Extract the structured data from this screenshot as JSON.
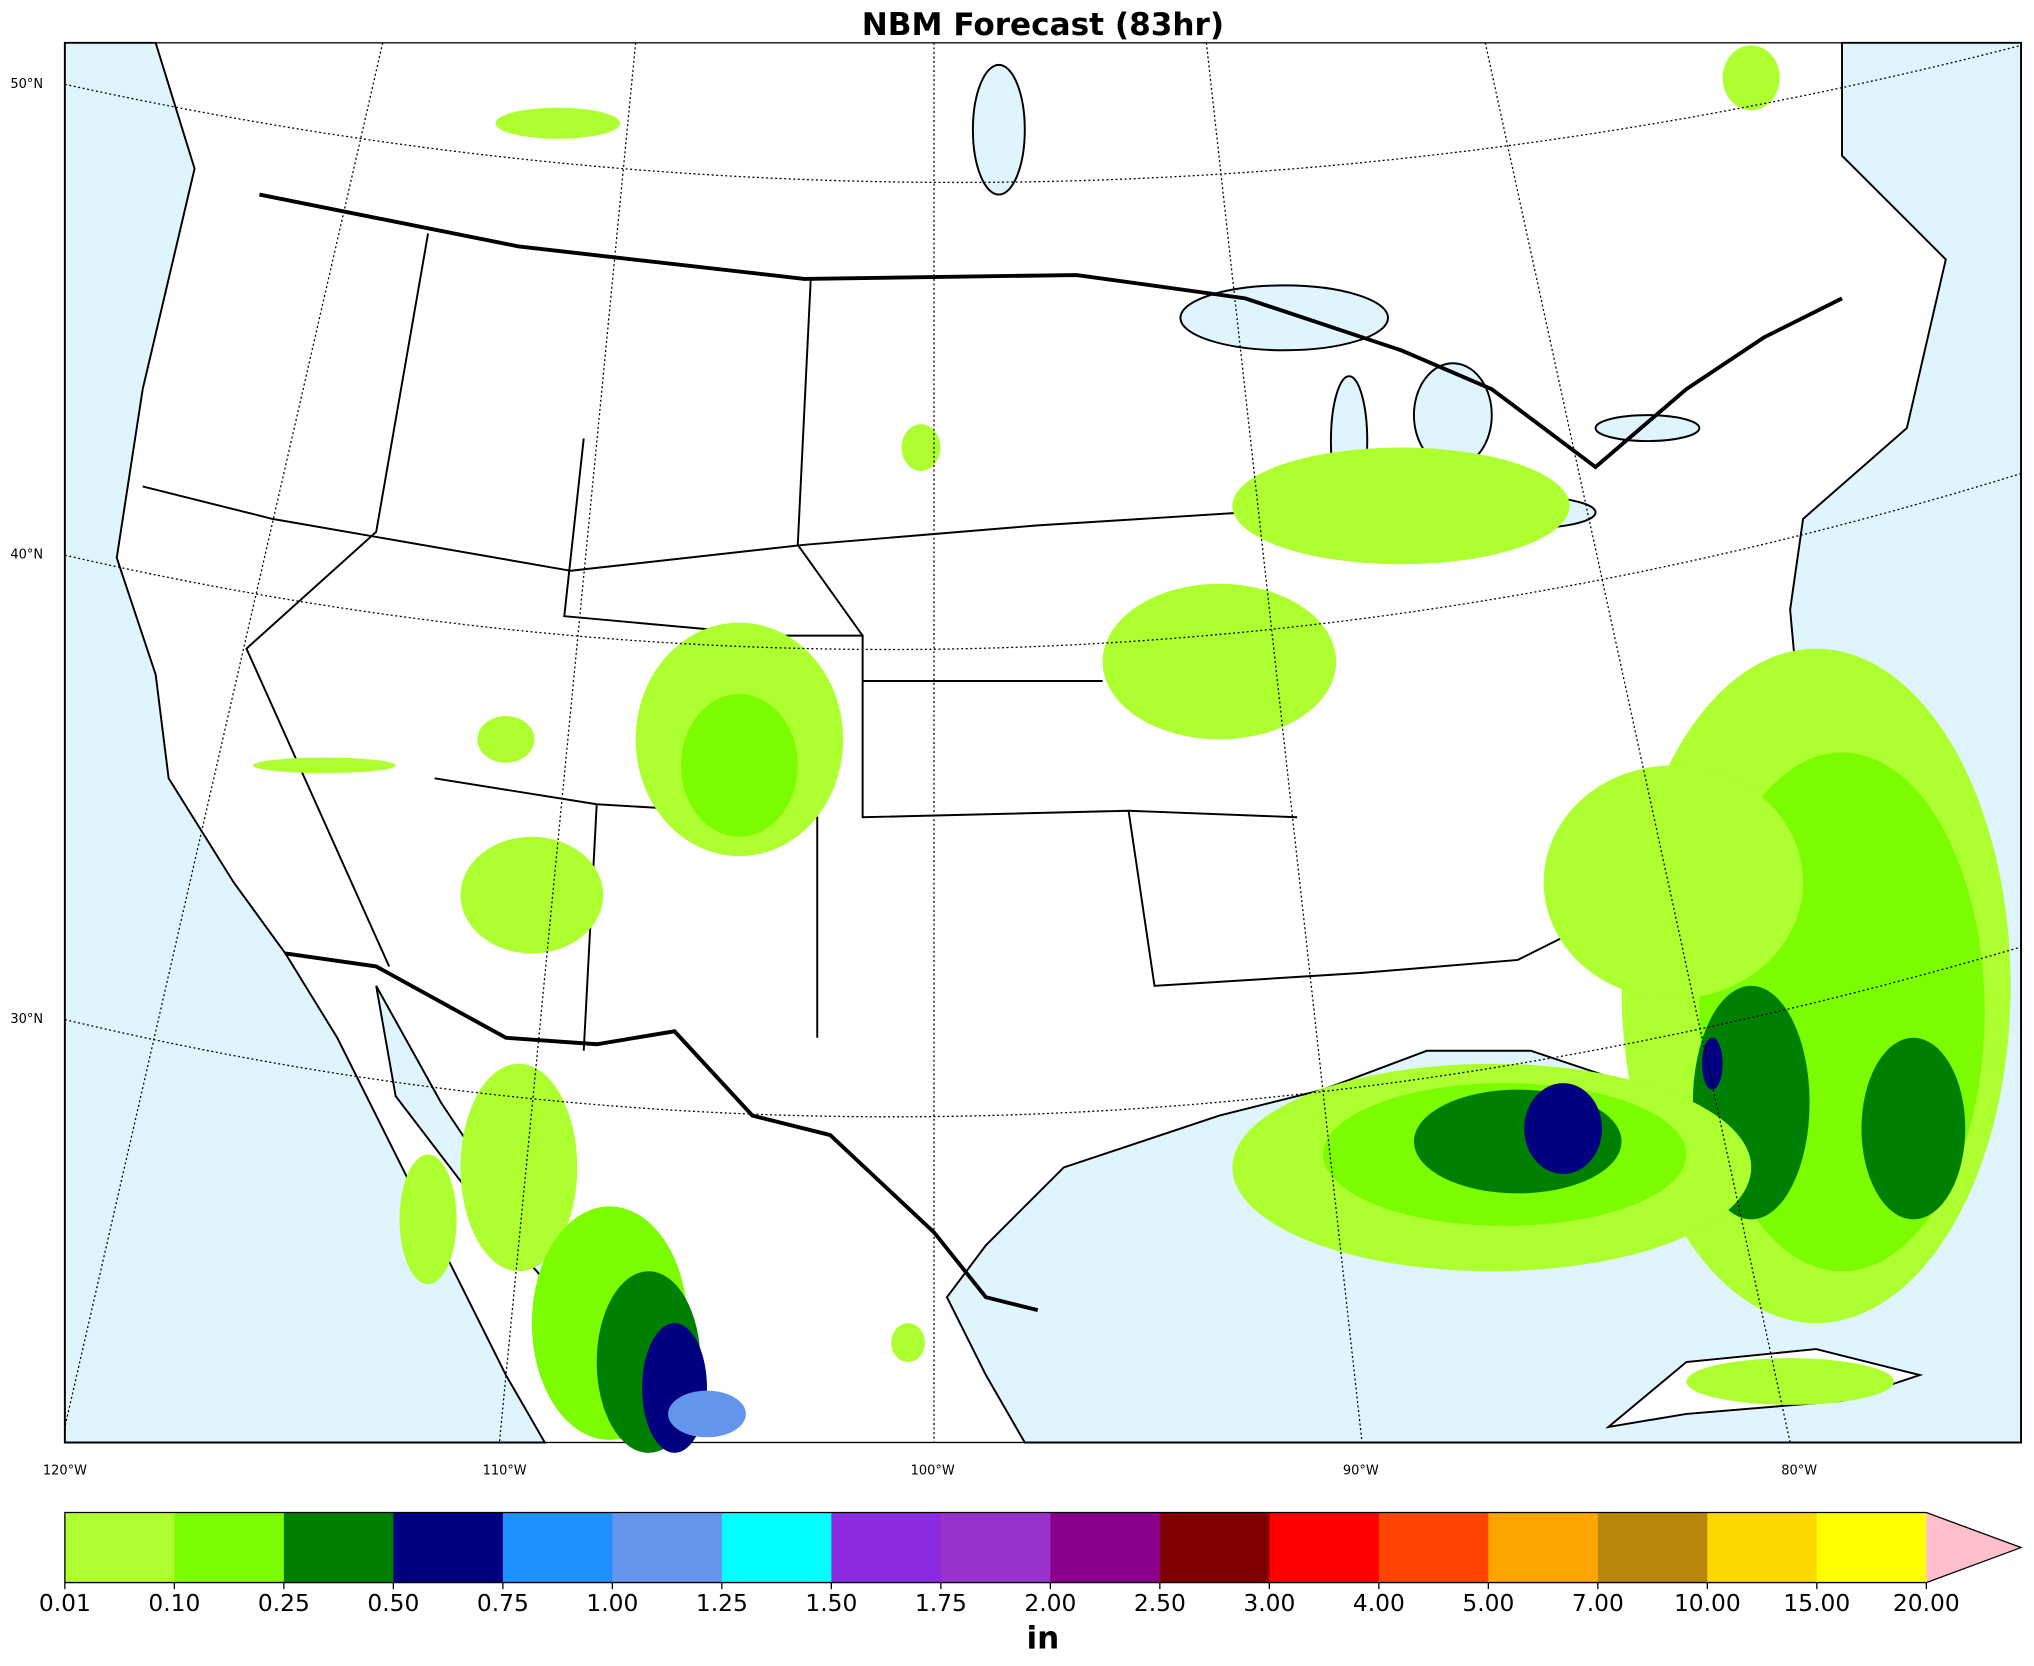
{
  "title": "NBM Forecast (83hr)",
  "lat_labels": [
    "50°N",
    "40°N",
    "30°N"
  ],
  "lon_labels": [
    "120°W",
    "110°W",
    "100°W",
    "90°W",
    "80°W"
  ],
  "colorbar": {
    "unit": "in",
    "levels": [
      "0.01",
      "0.10",
      "0.25",
      "0.50",
      "0.75",
      "1.00",
      "1.25",
      "1.50",
      "1.75",
      "2.00",
      "2.50",
      "3.00",
      "4.00",
      "5.00",
      "7.00",
      "10.00",
      "15.00",
      "20.00"
    ],
    "colors": [
      "#adff2f",
      "#7cfc00",
      "#008000",
      "#000080",
      "#1e90ff",
      "#6495ed",
      "#00ffff",
      "#8a2be2",
      "#9932cc",
      "#8b008b",
      "#800000",
      "#ff0000",
      "#ff4500",
      "#ffa500",
      "#b8860b",
      "#ffd700",
      "#ffff00"
    ],
    "extend_color": "#ffc0cb"
  }
}
